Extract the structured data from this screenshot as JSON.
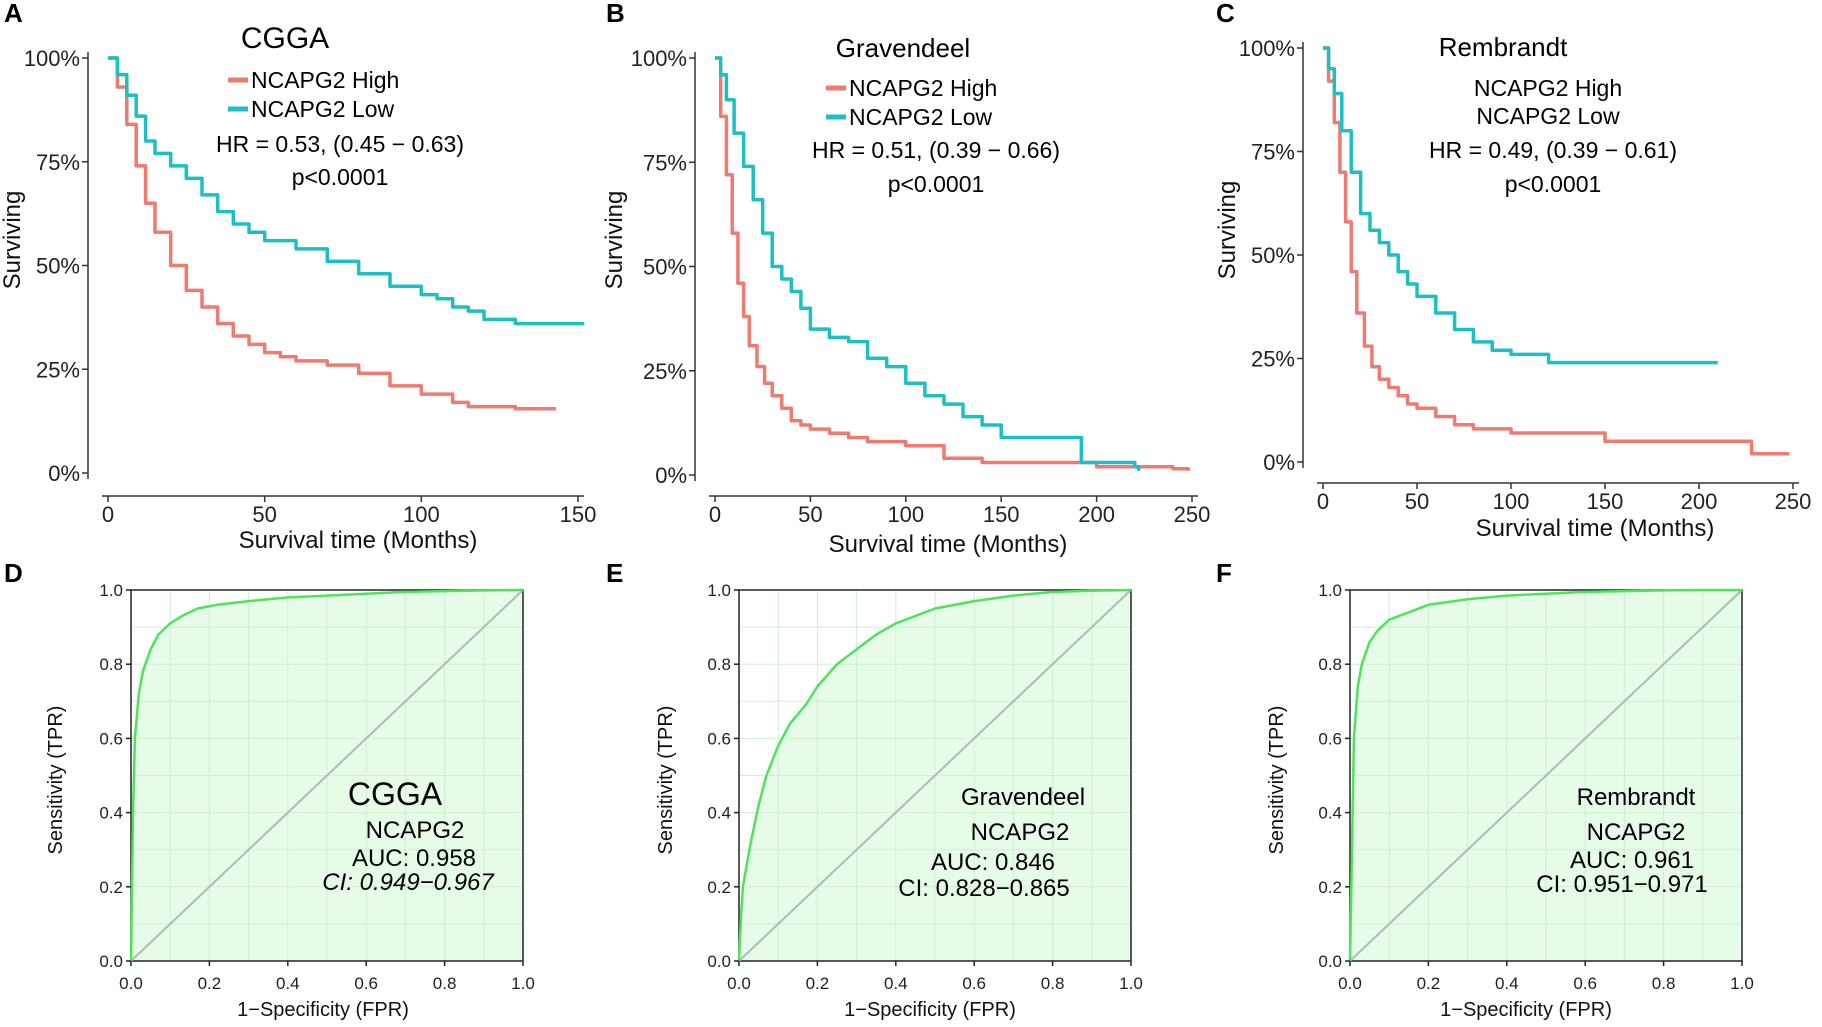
{
  "colors": {
    "high": "#f07a6f",
    "low": "#1cbfc6",
    "roc": "#4ee45a",
    "rocFill": "#e7fbe9",
    "rocGrid": "#cfeed3",
    "diag": "#a9bcb7"
  },
  "chart_data": [
    {
      "id": "A",
      "type": "line",
      "title": "CGGA",
      "xlabel": "Survival time (Months)",
      "ylabel": "Surviving",
      "xlim": [
        0,
        150
      ],
      "ylim": [
        0,
        1
      ],
      "xticks": [
        "0",
        "50",
        "100",
        "150"
      ],
      "yticks": [
        "0%",
        "25%",
        "50%",
        "75%",
        "100%"
      ],
      "legend": [
        "NCAPG2 High",
        "NCAPG2 Low"
      ],
      "hr": "HR = 0.53, (0.45 − 0.63)",
      "p": "p<0.0001",
      "series": [
        {
          "name": "NCAPG2 High",
          "x": [
            0,
            3,
            6,
            9,
            12,
            15,
            20,
            25,
            30,
            35,
            40,
            45,
            50,
            55,
            60,
            70,
            80,
            90,
            100,
            110,
            115,
            120,
            130,
            140,
            143
          ],
          "y": [
            1.0,
            0.93,
            0.84,
            0.74,
            0.65,
            0.58,
            0.5,
            0.44,
            0.4,
            0.36,
            0.33,
            0.31,
            0.29,
            0.28,
            0.27,
            0.26,
            0.24,
            0.21,
            0.19,
            0.17,
            0.16,
            0.16,
            0.155,
            0.155,
            0.155
          ]
        },
        {
          "name": "NCAPG2 Low",
          "x": [
            0,
            3,
            6,
            9,
            12,
            15,
            20,
            25,
            30,
            35,
            40,
            45,
            50,
            60,
            70,
            80,
            90,
            100,
            105,
            110,
            115,
            120,
            130,
            140,
            150,
            152
          ],
          "y": [
            1.0,
            0.96,
            0.91,
            0.86,
            0.8,
            0.77,
            0.74,
            0.71,
            0.67,
            0.63,
            0.6,
            0.58,
            0.56,
            0.54,
            0.51,
            0.48,
            0.45,
            0.43,
            0.42,
            0.4,
            0.39,
            0.37,
            0.36,
            0.36,
            0.36,
            0.36
          ]
        }
      ]
    },
    {
      "id": "B",
      "type": "line",
      "title": "Gravendeel",
      "xlabel": "Survival time (Months)",
      "ylabel": "Surviving",
      "xlim": [
        0,
        250
      ],
      "ylim": [
        0,
        1
      ],
      "xticks": [
        "0",
        "50",
        "100",
        "150",
        "200",
        "250"
      ],
      "yticks": [
        "0%",
        "25%",
        "50%",
        "75%",
        "100%"
      ],
      "legend": [
        "NCAPG2 High",
        "NCAPG2 Low"
      ],
      "hr": "HR = 0.51, (0.39 − 0.66)",
      "p": "p<0.0001",
      "series": [
        {
          "name": "NCAPG2 High",
          "x": [
            0,
            3,
            6,
            9,
            12,
            15,
            18,
            22,
            26,
            30,
            35,
            40,
            45,
            50,
            60,
            70,
            80,
            100,
            120,
            140,
            160,
            190,
            200,
            210,
            220,
            240,
            248
          ],
          "y": [
            1.0,
            0.86,
            0.72,
            0.58,
            0.46,
            0.38,
            0.31,
            0.26,
            0.22,
            0.19,
            0.16,
            0.13,
            0.12,
            0.11,
            0.1,
            0.09,
            0.08,
            0.07,
            0.04,
            0.03,
            0.03,
            0.03,
            0.02,
            0.02,
            0.02,
            0.015,
            0.01
          ]
        },
        {
          "name": "NCAPG2 Low",
          "x": [
            0,
            3,
            6,
            10,
            15,
            20,
            25,
            30,
            35,
            40,
            45,
            50,
            60,
            70,
            80,
            90,
            100,
            110,
            120,
            130,
            140,
            150,
            160,
            170,
            190,
            192,
            200,
            210,
            220,
            222
          ],
          "y": [
            1.0,
            0.96,
            0.9,
            0.82,
            0.74,
            0.66,
            0.58,
            0.5,
            0.47,
            0.44,
            0.4,
            0.35,
            0.33,
            0.32,
            0.28,
            0.26,
            0.22,
            0.19,
            0.17,
            0.14,
            0.12,
            0.09,
            0.09,
            0.09,
            0.09,
            0.03,
            0.03,
            0.03,
            0.02,
            0.01
          ]
        }
      ]
    },
    {
      "id": "C",
      "type": "line",
      "title": "Rembrandt",
      "xlabel": "Survival time (Months)",
      "ylabel": "Surviving",
      "xlim": [
        0,
        250
      ],
      "ylim": [
        0,
        1
      ],
      "xticks": [
        "0",
        "50",
        "100",
        "150",
        "200",
        "250"
      ],
      "yticks": [
        "0%",
        "25%",
        "50%",
        "75%",
        "100%"
      ],
      "legend": [
        "NCAPG2 High",
        "NCAPG2 Low"
      ],
      "hr": "HR = 0.49, (0.39 − 0.61)",
      "p": "p<0.0001",
      "series": [
        {
          "name": "NCAPG2 High",
          "x": [
            0,
            3,
            6,
            9,
            12,
            15,
            18,
            22,
            26,
            30,
            35,
            40,
            45,
            50,
            60,
            70,
            80,
            100,
            120,
            150,
            180,
            200,
            220,
            228,
            248
          ],
          "y": [
            1.0,
            0.92,
            0.82,
            0.7,
            0.58,
            0.46,
            0.36,
            0.28,
            0.23,
            0.2,
            0.18,
            0.16,
            0.14,
            0.13,
            0.11,
            0.09,
            0.08,
            0.07,
            0.07,
            0.05,
            0.05,
            0.05,
            0.05,
            0.02,
            0.02
          ]
        },
        {
          "name": "NCAPG2 Low",
          "x": [
            0,
            3,
            6,
            10,
            15,
            20,
            25,
            30,
            35,
            40,
            45,
            50,
            60,
            70,
            80,
            90,
            100,
            110,
            120,
            150,
            180,
            200,
            210
          ],
          "y": [
            1.0,
            0.95,
            0.89,
            0.8,
            0.7,
            0.6,
            0.56,
            0.53,
            0.5,
            0.46,
            0.43,
            0.4,
            0.36,
            0.32,
            0.29,
            0.27,
            0.26,
            0.26,
            0.24,
            0.24,
            0.24,
            0.24,
            0.24
          ]
        }
      ]
    },
    {
      "id": "D",
      "type": "line",
      "title": "CGGA",
      "xlabel": "1−Specificity (FPR)",
      "ylabel": "Sensitivity (TPR)",
      "xlim": [
        0,
        1
      ],
      "ylim": [
        0,
        1
      ],
      "xticks": [
        "0.0",
        "0.2",
        "0.4",
        "0.6",
        "0.8",
        "1.0"
      ],
      "yticks": [
        "0.0",
        "0.2",
        "0.4",
        "0.6",
        "0.8",
        "1.0"
      ],
      "gene": "NCAPG2",
      "auc": "AUC: 0.958",
      "ci": "CI: 0.949−0.967",
      "series": [
        {
          "name": "ROC",
          "x": [
            0,
            0.005,
            0.01,
            0.02,
            0.03,
            0.05,
            0.07,
            0.1,
            0.13,
            0.17,
            0.22,
            0.3,
            0.4,
            0.5,
            0.6,
            0.7,
            0.8,
            0.9,
            1.0
          ],
          "y": [
            0,
            0.4,
            0.6,
            0.72,
            0.78,
            0.84,
            0.88,
            0.91,
            0.93,
            0.95,
            0.96,
            0.97,
            0.98,
            0.985,
            0.99,
            0.995,
            0.997,
            0.999,
            1.0
          ]
        }
      ]
    },
    {
      "id": "E",
      "type": "line",
      "title": "Gravendeel",
      "xlabel": "1−Specificity (FPR)",
      "ylabel": "Sensitivity (TPR)",
      "xlim": [
        0,
        1
      ],
      "ylim": [
        0,
        1
      ],
      "xticks": [
        "0.0",
        "0.2",
        "0.4",
        "0.6",
        "0.8",
        "1.0"
      ],
      "yticks": [
        "0.0",
        "0.2",
        "0.4",
        "0.6",
        "0.8",
        "1.0"
      ],
      "gene": "NCAPG2",
      "auc": "AUC: 0.846",
      "ci": "CI: 0.828−0.865",
      "series": [
        {
          "name": "ROC",
          "x": [
            0,
            0.005,
            0.01,
            0.02,
            0.03,
            0.05,
            0.07,
            0.1,
            0.13,
            0.17,
            0.2,
            0.25,
            0.3,
            0.35,
            0.4,
            0.5,
            0.6,
            0.7,
            0.8,
            0.9,
            1.0
          ],
          "y": [
            0,
            0.12,
            0.2,
            0.26,
            0.32,
            0.42,
            0.5,
            0.58,
            0.64,
            0.69,
            0.74,
            0.8,
            0.84,
            0.88,
            0.91,
            0.95,
            0.97,
            0.985,
            0.995,
            0.998,
            1.0
          ]
        }
      ]
    },
    {
      "id": "F",
      "type": "line",
      "title": "Rembrandt",
      "xlabel": "1−Specificity (FPR)",
      "ylabel": "Sensitivity (TPR)",
      "xlim": [
        0,
        1
      ],
      "ylim": [
        0,
        1
      ],
      "xticks": [
        "0.0",
        "0.2",
        "0.4",
        "0.6",
        "0.8",
        "1.0"
      ],
      "yticks": [
        "0.0",
        "0.2",
        "0.4",
        "0.6",
        "0.8",
        "1.0"
      ],
      "gene": "NCAPG2",
      "auc": "AUC: 0.961",
      "ci": "CI: 0.951−0.971",
      "series": [
        {
          "name": "ROC",
          "x": [
            0,
            0.005,
            0.01,
            0.02,
            0.03,
            0.05,
            0.07,
            0.1,
            0.15,
            0.2,
            0.3,
            0.4,
            0.5,
            0.6,
            0.7,
            0.8,
            0.9,
            1.0
          ],
          "y": [
            0,
            0.3,
            0.6,
            0.74,
            0.8,
            0.86,
            0.89,
            0.92,
            0.94,
            0.96,
            0.975,
            0.985,
            0.99,
            0.995,
            0.997,
            0.999,
            1.0,
            1.0
          ]
        }
      ]
    }
  ]
}
